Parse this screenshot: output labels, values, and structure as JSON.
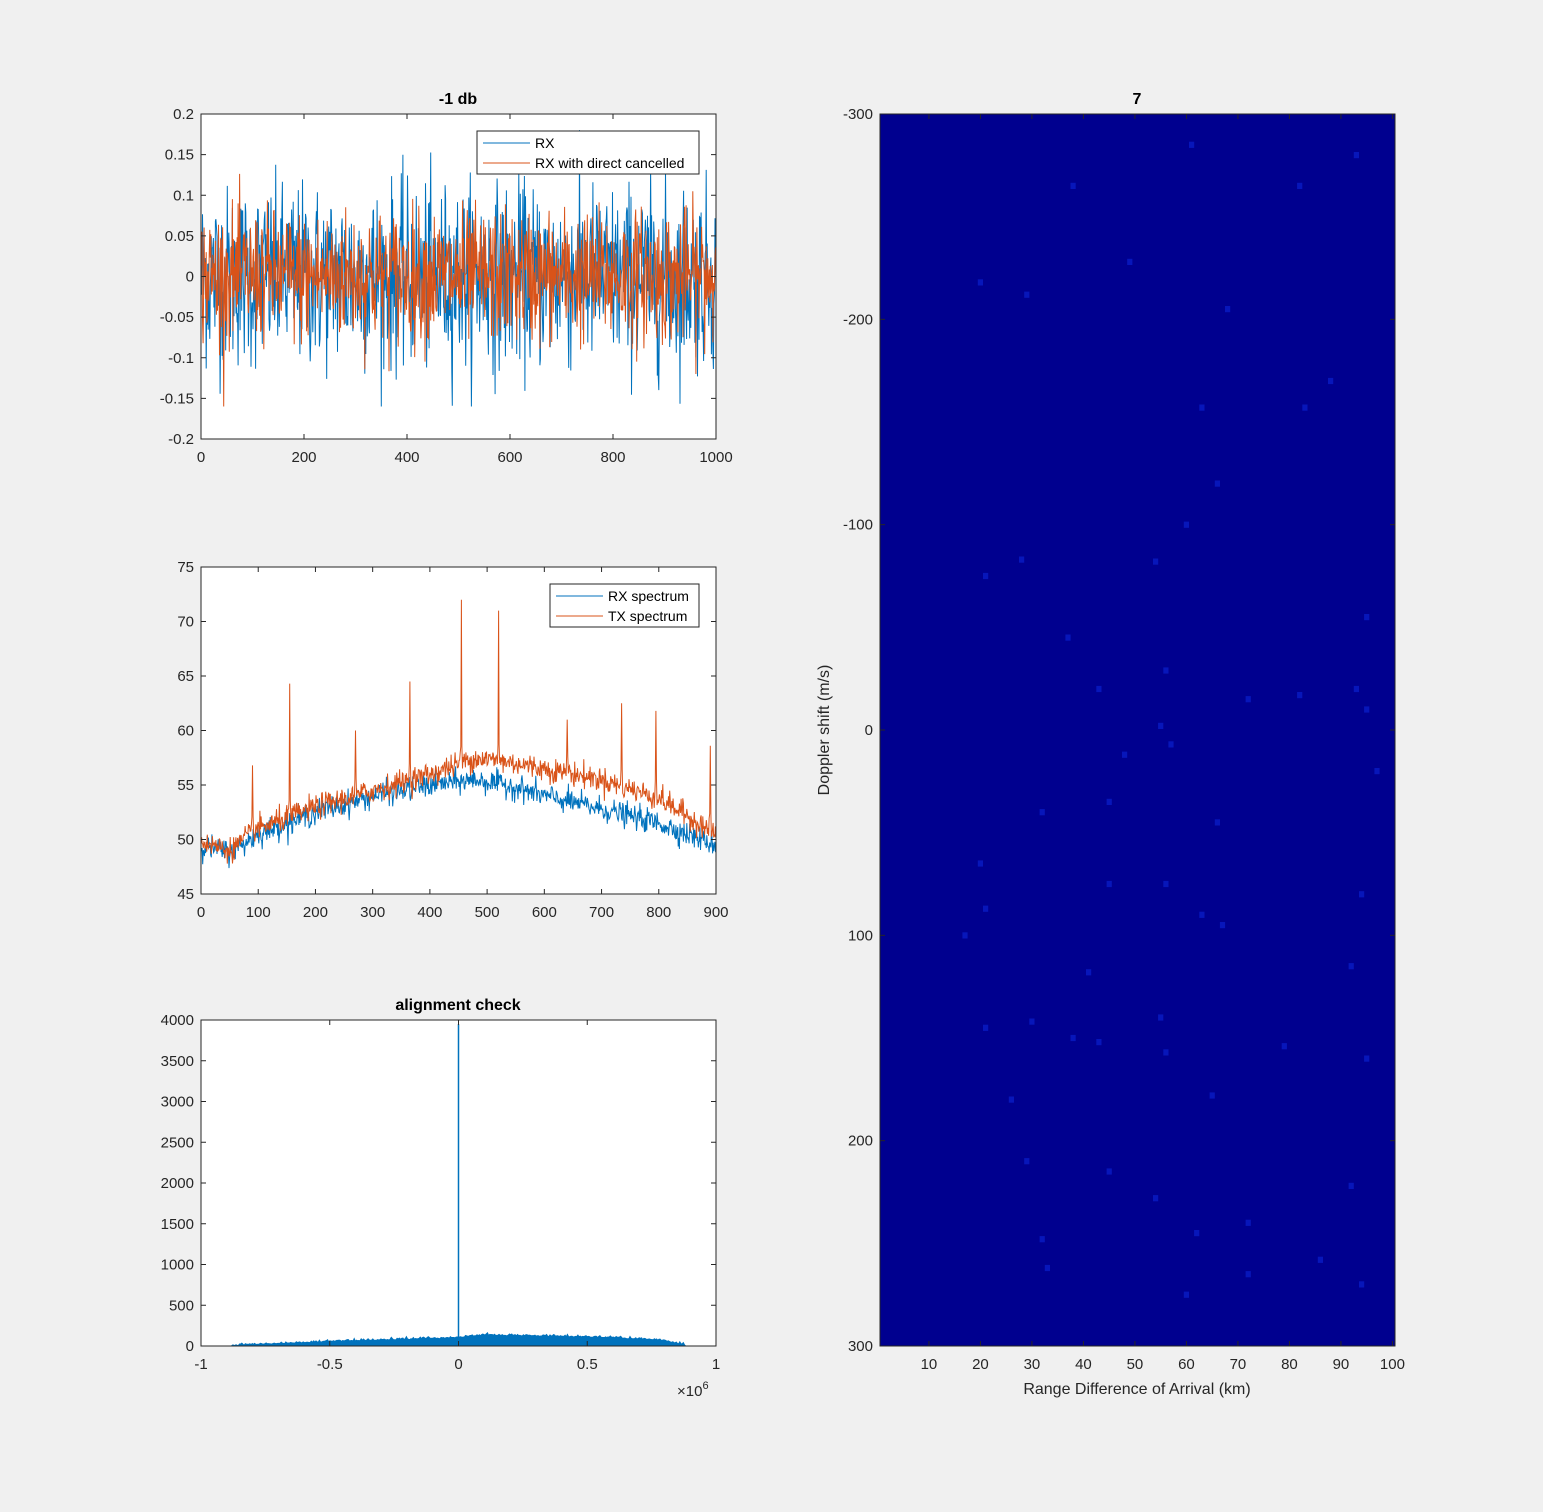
{
  "figure": {
    "background": "#f0f0f0"
  },
  "chart_data": [
    {
      "id": "time-plot",
      "type": "line",
      "title": "-1 db",
      "xlabel": "",
      "ylabel": "",
      "xlim": [
        0,
        1000
      ],
      "ylim": [
        -0.2,
        0.2
      ],
      "xticks": [
        "0",
        "200",
        "400",
        "600",
        "800",
        "1000"
      ],
      "yticks": [
        "0.2",
        "0.15",
        "0.1",
        "0.05",
        "0",
        "-0.05",
        "-0.1",
        "-0.15",
        "-0.2"
      ],
      "xtick_values": [
        0,
        200,
        400,
        600,
        800,
        1000
      ],
      "ytick_values": [
        0.2,
        0.15,
        0.1,
        0.05,
        0,
        -0.05,
        -0.1,
        -0.15,
        -0.2
      ],
      "legend": "top-right",
      "series": [
        {
          "name": "RX",
          "color": "#0072BD",
          "description": "noise-like signal, roughly within ±0.15, 1000 samples"
        },
        {
          "name": "RX with direct cancelled",
          "color": "#D95319",
          "description": "noise-like signal, roughly within ±0.12, 1000 samples"
        }
      ]
    },
    {
      "id": "spectrum-plot",
      "type": "line",
      "title": "",
      "xlabel": "",
      "ylabel": "",
      "xlim": [
        0,
        900
      ],
      "ylim": [
        45,
        75
      ],
      "xticks": [
        "0",
        "100",
        "200",
        "300",
        "400",
        "500",
        "600",
        "700",
        "800",
        "900"
      ],
      "yticks": [
        "75",
        "70",
        "65",
        "60",
        "55",
        "50",
        "45"
      ],
      "xtick_values": [
        0,
        100,
        200,
        300,
        400,
        500,
        600,
        700,
        800,
        900
      ],
      "ytick_values": [
        75,
        70,
        65,
        60,
        55,
        50,
        45
      ],
      "legend": "top-right",
      "series": [
        {
          "name": "RX spectrum",
          "color": "#0072BD",
          "envelope_x": [
            0,
            50,
            100,
            200,
            300,
            400,
            480,
            550,
            600,
            700,
            800,
            900
          ],
          "envelope_y": [
            49.5,
            48.8,
            50.5,
            52.5,
            54,
            55,
            55.5,
            54.8,
            54,
            52.8,
            51.5,
            49.5
          ]
        },
        {
          "name": "TX spectrum",
          "color": "#D95319",
          "envelope_x": [
            0,
            50,
            100,
            200,
            300,
            400,
            480,
            550,
            600,
            700,
            800,
            900
          ],
          "envelope_y": [
            49.8,
            49,
            51,
            53,
            54.5,
            56,
            57.5,
            57,
            56.5,
            55.5,
            53.8,
            50.5
          ],
          "peaks_x": [
            90,
            155,
            270,
            365,
            455,
            520,
            640,
            735,
            795,
            890
          ],
          "peaks_y": [
            56.8,
            64.3,
            60,
            64.5,
            72,
            71,
            61,
            62.5,
            61.8,
            58.6
          ]
        }
      ]
    },
    {
      "id": "alignment-plot",
      "type": "area",
      "title": "alignment check",
      "xlabel": "",
      "ylabel": "",
      "xlim": [
        -1,
        1
      ],
      "ylim": [
        0,
        4000
      ],
      "x_exponent_label": "×10",
      "x_exponent": "6",
      "xticks": [
        "-1",
        "-0.5",
        "0",
        "0.5",
        "1"
      ],
      "yticks": [
        "4000",
        "3500",
        "3000",
        "2500",
        "2000",
        "1500",
        "1000",
        "500",
        "0"
      ],
      "xtick_values": [
        -1,
        -0.5,
        0,
        0.5,
        1
      ],
      "ytick_values": [
        4000,
        3500,
        3000,
        2500,
        2000,
        1500,
        1000,
        500,
        0
      ],
      "series": [
        {
          "color": "#0072BD",
          "envelope_x": [
            -0.9,
            -0.6,
            -0.3,
            -0.05,
            0.0,
            0.1,
            0.3,
            0.6,
            0.8,
            0.9
          ],
          "envelope_y": [
            0,
            40,
            70,
            90,
            100,
            130,
            120,
            100,
            60,
            0
          ],
          "spike_x": 0.0,
          "spike_y": 3950
        }
      ]
    },
    {
      "id": "heatmap-plot",
      "type": "heatmap",
      "title": "7",
      "xlabel": "Range Difference of Arrival (km)",
      "ylabel": "Doppler shift (m/s)",
      "xlim": [
        0.5,
        100.5
      ],
      "ylim": [
        -300,
        300
      ],
      "y_reversed": true,
      "xticks": [
        "10",
        "20",
        "30",
        "40",
        "50",
        "60",
        "70",
        "80",
        "90",
        "100"
      ],
      "yticks": [
        "-300",
        "-200",
        "-100",
        "0",
        "100",
        "200",
        "300"
      ],
      "xtick_values": [
        10,
        20,
        30,
        40,
        50,
        60,
        70,
        80,
        90,
        100
      ],
      "ytick_values": [
        -300,
        -200,
        -100,
        0,
        100,
        200,
        300
      ],
      "background_color": "#00008F",
      "speckle_color": "#0A1EC8",
      "speckles": [
        [
          38,
          -265
        ],
        [
          82,
          -265
        ],
        [
          61,
          -285
        ],
        [
          93,
          -280
        ],
        [
          49,
          -228
        ],
        [
          20,
          -218
        ],
        [
          29,
          -212
        ],
        [
          68,
          -205
        ],
        [
          88,
          -170
        ],
        [
          63,
          -157
        ],
        [
          83,
          -157
        ],
        [
          66,
          -120
        ],
        [
          60,
          -100
        ],
        [
          28,
          -83
        ],
        [
          54,
          -82
        ],
        [
          21,
          -75
        ],
        [
          95,
          -55
        ],
        [
          37,
          -45
        ],
        [
          56,
          -29
        ],
        [
          93,
          -20
        ],
        [
          43,
          -20
        ],
        [
          72,
          -15
        ],
        [
          82,
          -17
        ],
        [
          95,
          -10
        ],
        [
          55,
          -2
        ],
        [
          57,
          7
        ],
        [
          48,
          12
        ],
        [
          97,
          20
        ],
        [
          32,
          40
        ],
        [
          45,
          35
        ],
        [
          66,
          45
        ],
        [
          20,
          65
        ],
        [
          56,
          75
        ],
        [
          45,
          75
        ],
        [
          94,
          80
        ],
        [
          21,
          87
        ],
        [
          63,
          90
        ],
        [
          67,
          95
        ],
        [
          17,
          100
        ],
        [
          92,
          115
        ],
        [
          41,
          118
        ],
        [
          55,
          140
        ],
        [
          21,
          145
        ],
        [
          30,
          142
        ],
        [
          43,
          152
        ],
        [
          56,
          157
        ],
        [
          38,
          150
        ],
        [
          79,
          154
        ],
        [
          95,
          160
        ],
        [
          65,
          178
        ],
        [
          26,
          180
        ],
        [
          29,
          210
        ],
        [
          45,
          215
        ],
        [
          92,
          222
        ],
        [
          54,
          228
        ],
        [
          72,
          240
        ],
        [
          62,
          245
        ],
        [
          32,
          248
        ],
        [
          33,
          262
        ],
        [
          86,
          258
        ],
        [
          72,
          265
        ],
        [
          94,
          270
        ],
        [
          60,
          275
        ]
      ]
    }
  ],
  "legends": {
    "time": [
      "RX",
      "RX with direct cancelled"
    ],
    "spectrum": [
      "RX spectrum",
      "TX spectrum"
    ]
  }
}
